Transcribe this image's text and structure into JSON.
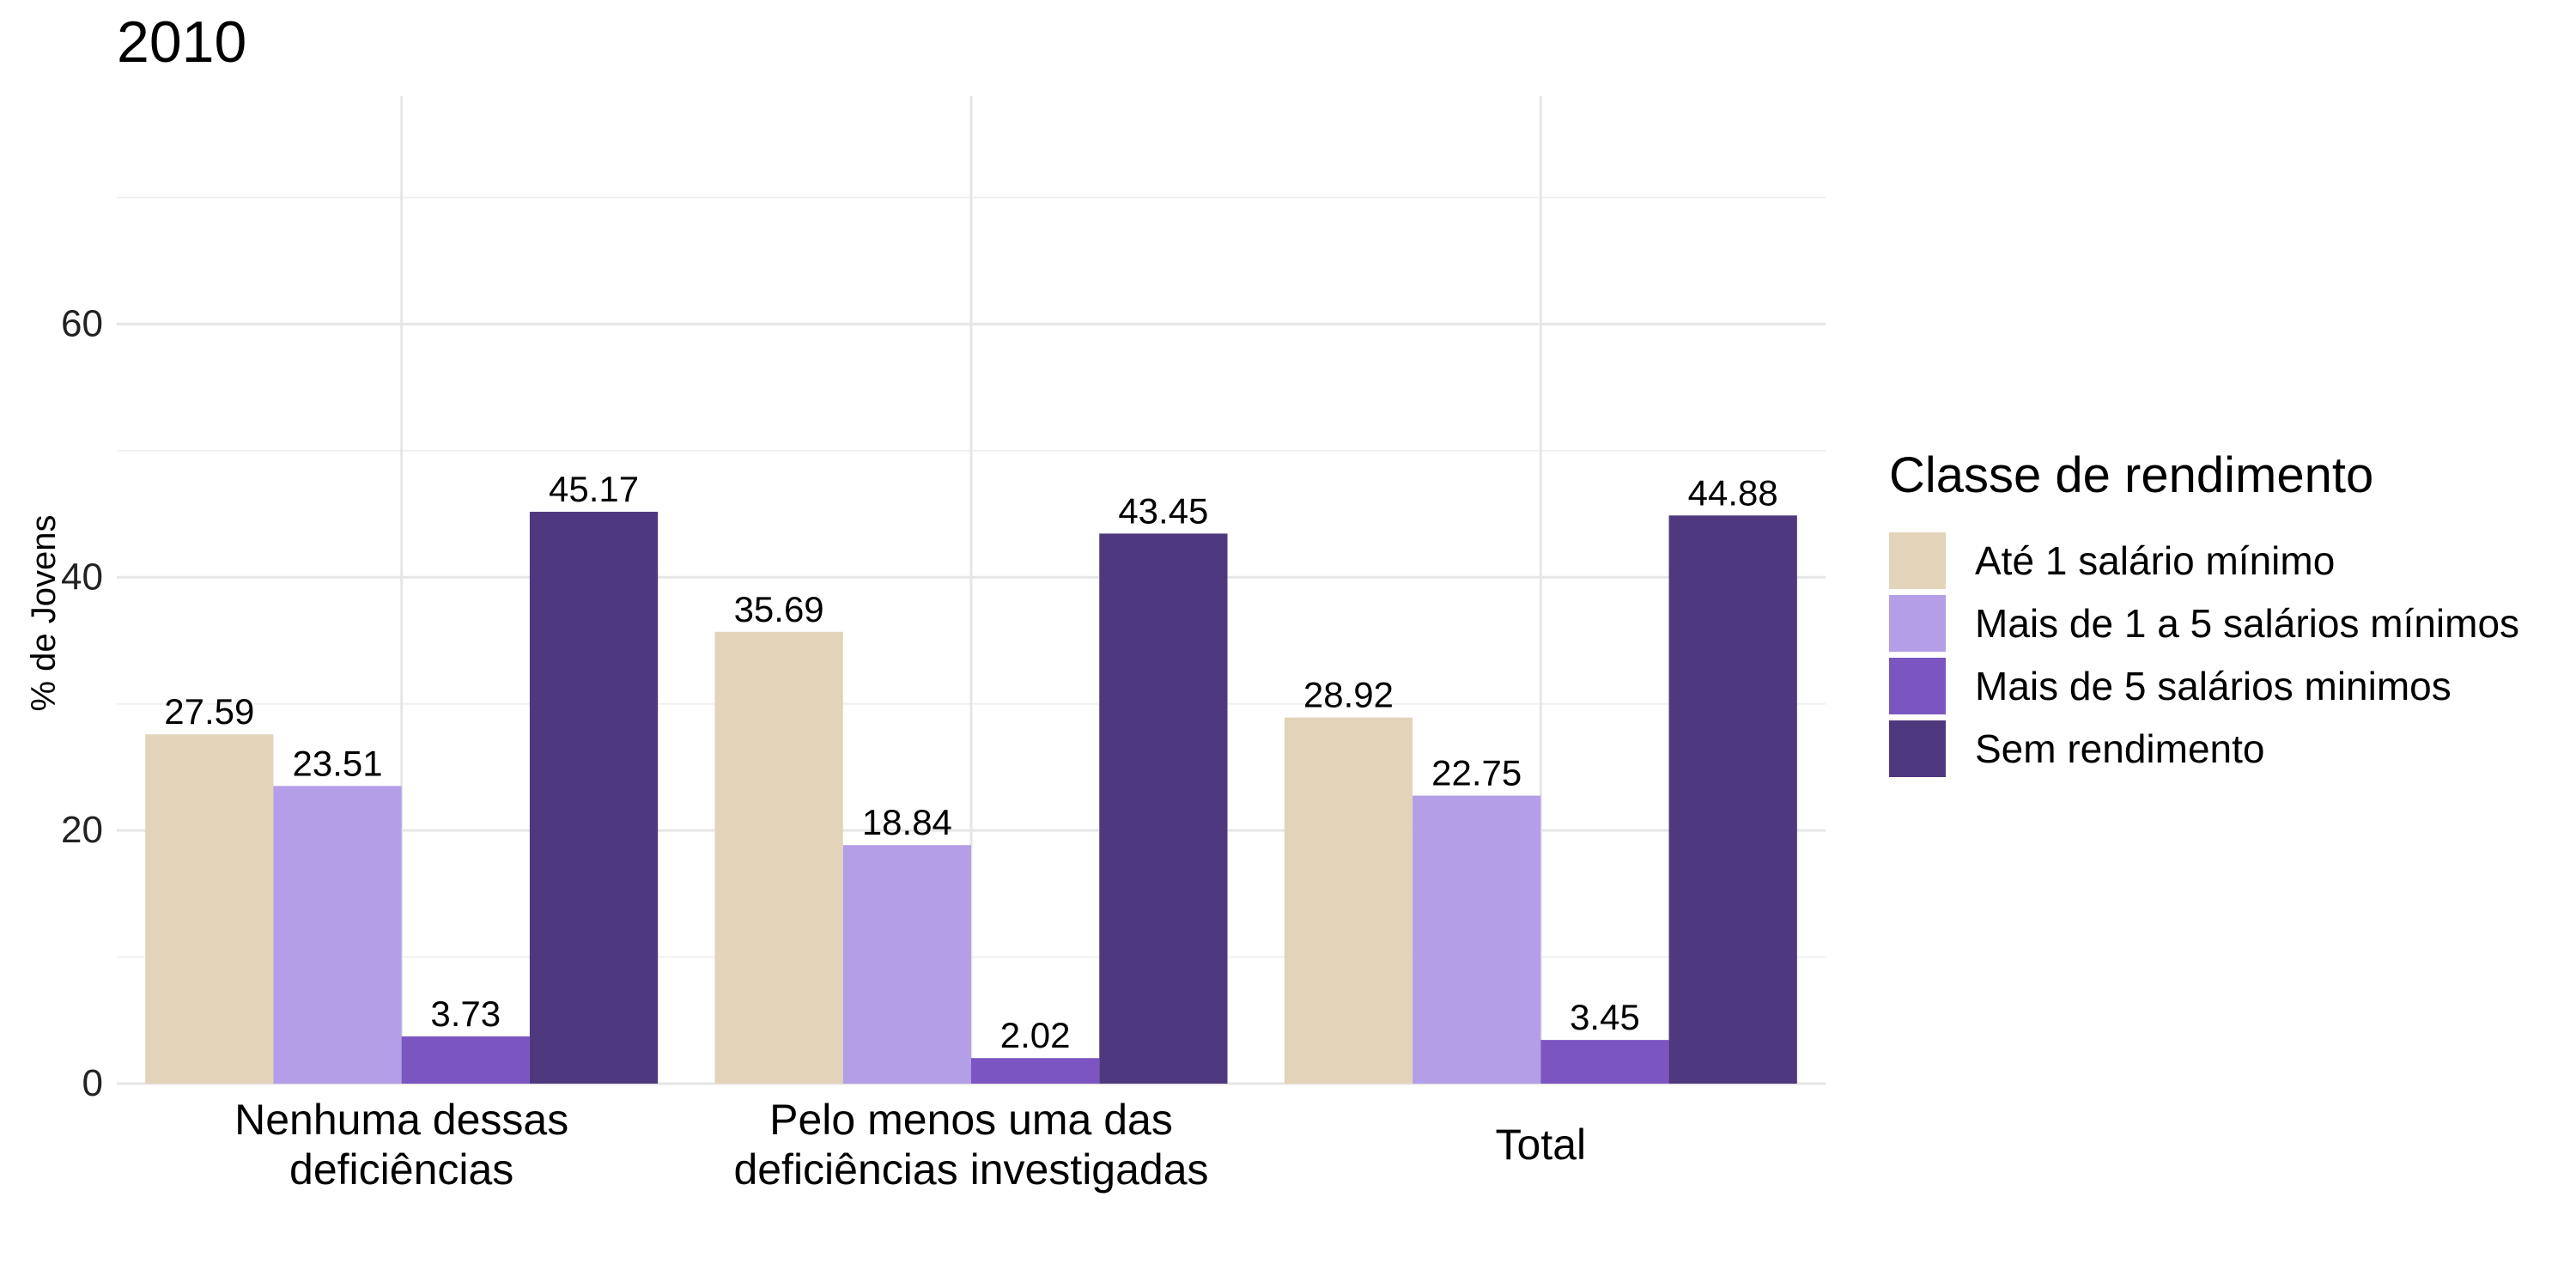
{
  "chart_data": {
    "type": "bar",
    "title": "2010",
    "ylabel": "% de Jovens",
    "xlabel": "",
    "ylim": [
      0,
      78
    ],
    "yticks": [
      0,
      20,
      40,
      60
    ],
    "grid": true,
    "legend_position": "right",
    "legend_title": "Classe de rendimento",
    "categories": [
      [
        "Nenhuma dessas",
        "deficiências"
      ],
      [
        "Pelo menos uma das",
        "deficiências investigadas"
      ],
      [
        "Total"
      ]
    ],
    "series": [
      {
        "name": "Até 1 salário mínimo",
        "color": "#e3d3b9",
        "values": [
          27.59,
          35.69,
          28.92
        ]
      },
      {
        "name": "Mais de 1 a 5 salários mínimos",
        "color": "#b39ee7",
        "values": [
          23.51,
          18.84,
          22.75
        ]
      },
      {
        "name": "Mais de 5 salários minimos",
        "color": "#7b55c0",
        "values": [
          3.73,
          2.02,
          3.45
        ]
      },
      {
        "name": "Sem rendimento",
        "color": "#4e387e",
        "values": [
          45.17,
          43.45,
          44.88
        ]
      }
    ]
  }
}
